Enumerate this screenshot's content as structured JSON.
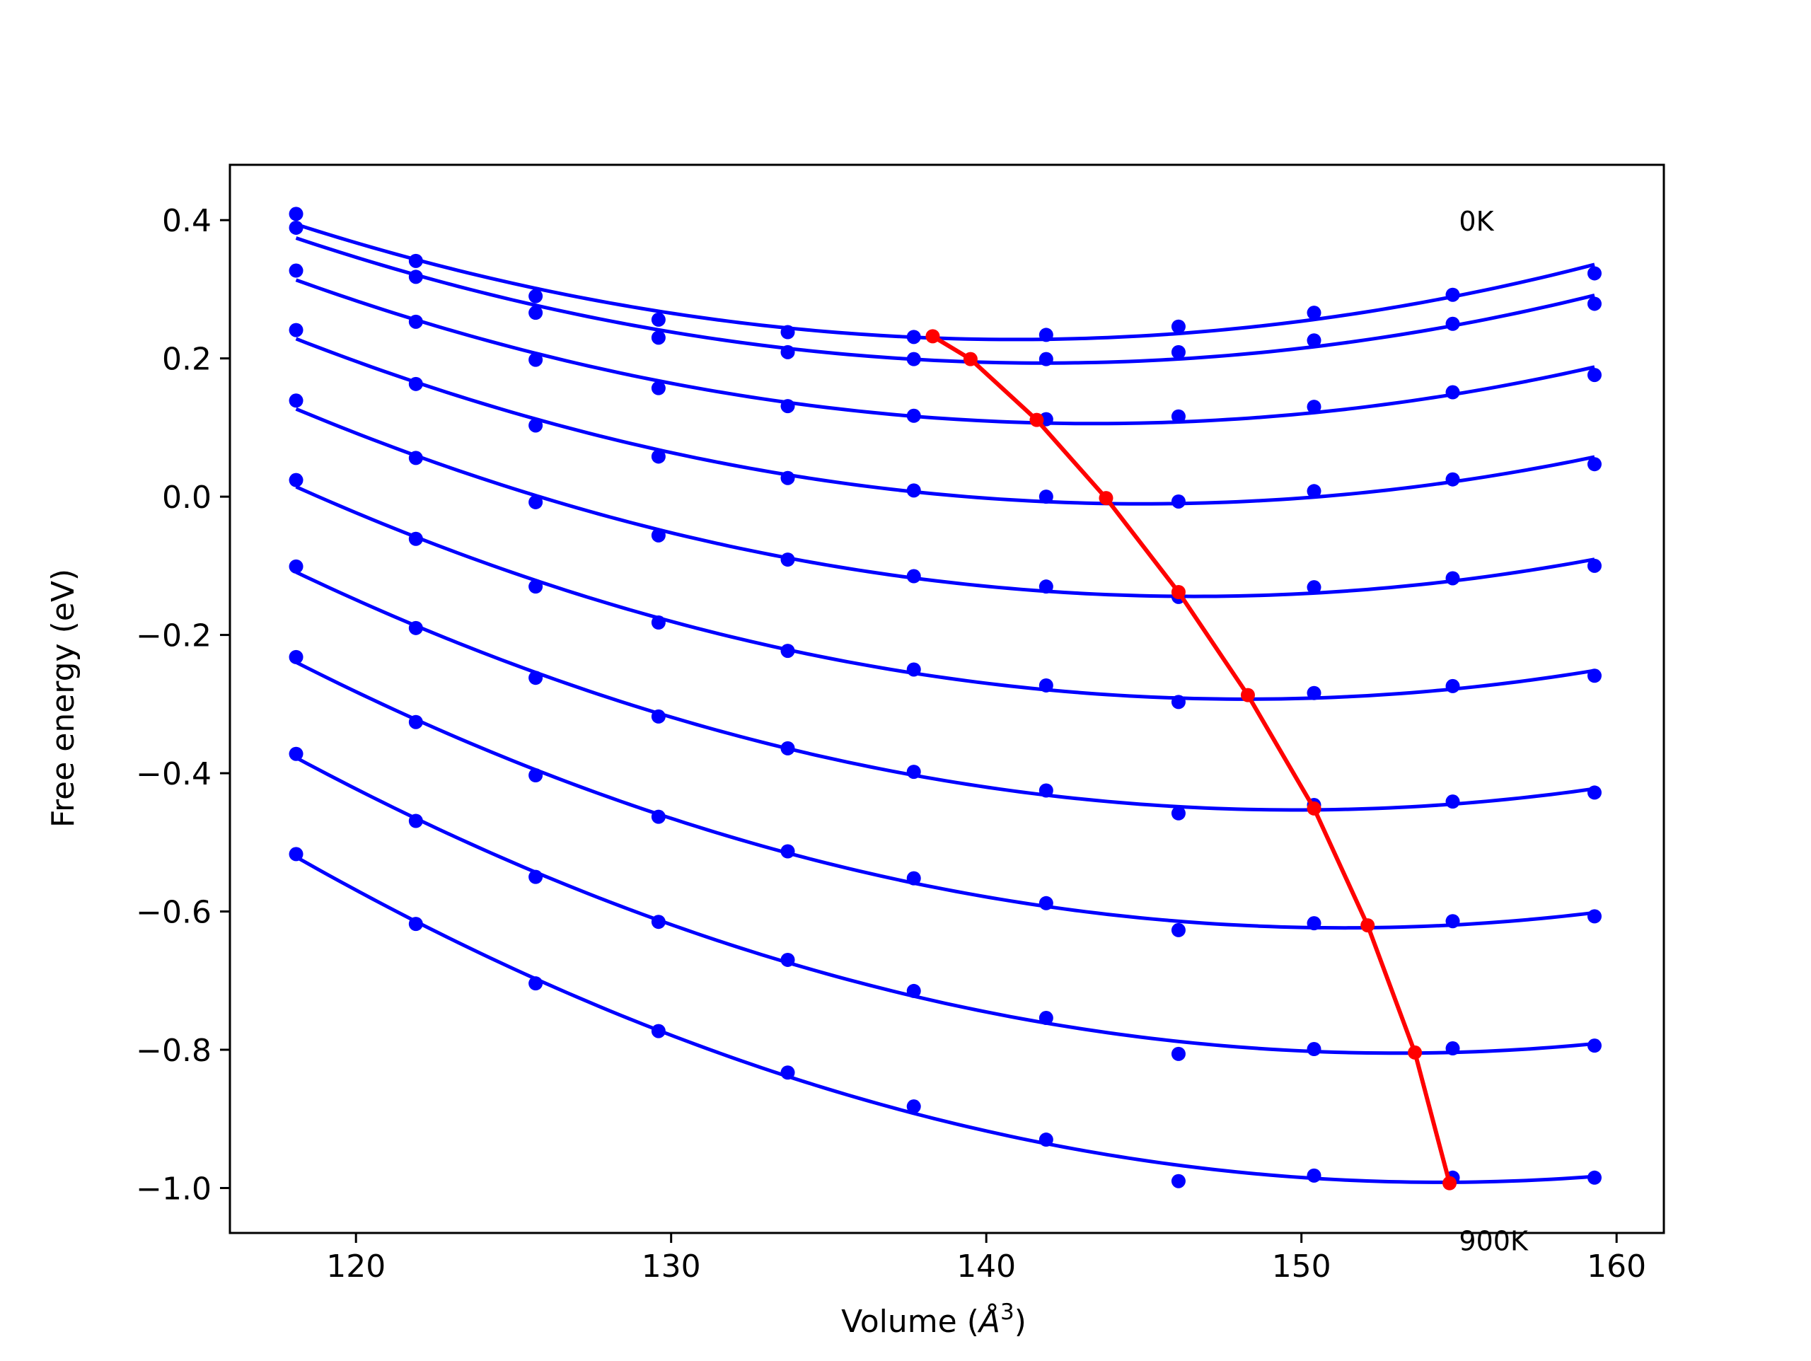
{
  "chart_data": {
    "type": "line",
    "title": "",
    "xlabel": "Volume (",
    "xlabel_unit": "Å",
    "xlabel_sup": "3",
    "xlabel_close": ")",
    "ylabel": "Free energy (eV)",
    "xlim": [
      116,
      161.5
    ],
    "ylim": [
      -1.065,
      0.48
    ],
    "xticks": [
      120,
      130,
      140,
      150,
      160
    ],
    "xtick_labels": [
      "120",
      "130",
      "140",
      "150",
      "160"
    ],
    "yticks": [
      0.4,
      0.2,
      0.0,
      -0.2,
      -0.4,
      -0.6,
      -0.8,
      -1.0
    ],
    "ytick_labels": [
      "0.4",
      "0.2",
      "0.0",
      "−0.2",
      "−0.4",
      "−0.6",
      "−0.8",
      "−1.0"
    ],
    "grid": false,
    "annotations": [
      {
        "text": "0K",
        "x": 155.0,
        "y": 0.385
      },
      {
        "text": "900K",
        "x": 155.0,
        "y": -1.09
      }
    ],
    "volumes": [
      118.1,
      121.9,
      125.7,
      129.6,
      133.7,
      137.7,
      141.9,
      146.1,
      150.4,
      154.8,
      159.3
    ],
    "series": [
      {
        "values": [
          0.409,
          0.341,
          0.29,
          0.256,
          0.238,
          0.231,
          0.234,
          0.246,
          0.266,
          0.292,
          0.323
        ]
      },
      {
        "values": [
          0.389,
          0.318,
          0.266,
          0.23,
          0.209,
          0.199,
          0.199,
          0.209,
          0.226,
          0.25,
          0.279
        ]
      },
      {
        "values": [
          0.327,
          0.253,
          0.198,
          0.157,
          0.131,
          0.117,
          0.112,
          0.116,
          0.13,
          0.151,
          0.176
        ]
      },
      {
        "values": [
          0.241,
          0.163,
          0.103,
          0.058,
          0.027,
          0.009,
          0.0,
          -0.007,
          0.008,
          0.025,
          0.047
        ]
      },
      {
        "values": [
          0.139,
          0.056,
          -0.008,
          -0.056,
          -0.091,
          -0.115,
          -0.13,
          -0.145,
          -0.131,
          -0.118,
          -0.1
        ]
      },
      {
        "values": [
          0.024,
          -0.061,
          -0.13,
          -0.182,
          -0.223,
          -0.25,
          -0.273,
          -0.297,
          -0.284,
          -0.274,
          -0.259
        ]
      },
      {
        "values": [
          -0.101,
          -0.19,
          -0.262,
          -0.318,
          -0.364,
          -0.398,
          -0.425,
          -0.458,
          -0.446,
          -0.441,
          -0.428
        ]
      },
      {
        "values": [
          -0.232,
          -0.326,
          -0.403,
          -0.463,
          -0.513,
          -0.552,
          -0.588,
          -0.627,
          -0.617,
          -0.614,
          -0.607
        ]
      },
      {
        "values": [
          -0.372,
          -0.469,
          -0.55,
          -0.615,
          -0.67,
          -0.715,
          -0.754,
          -0.806,
          -0.799,
          -0.798,
          -0.794
        ]
      },
      {
        "values": [
          -0.517,
          -0.618,
          -0.704,
          -0.773,
          -0.833,
          -0.882,
          -0.93,
          -0.99,
          -0.982,
          -0.985,
          -0.985
        ]
      }
    ],
    "equilibrium": {
      "x": [
        138.3,
        139.5,
        141.6,
        143.8,
        146.1,
        148.3,
        150.4,
        152.1,
        153.6,
        154.7
      ],
      "y": [
        0.232,
        0.199,
        0.111,
        -0.002,
        -0.138,
        -0.287,
        -0.451,
        -0.62,
        -0.804,
        -0.993
      ]
    },
    "colors": {
      "series": "#0000ff",
      "equilibrium": "#ff0000",
      "axes": "#000000",
      "background": "#ffffff"
    }
  }
}
